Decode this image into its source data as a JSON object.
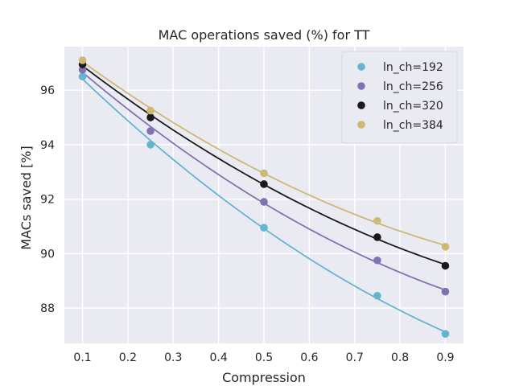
{
  "chart_data": {
    "type": "scatter",
    "title": "MAC operations saved (%) for TT",
    "xlabel": "Compression",
    "ylabel": "MACs saved [%]",
    "xlim": [
      0.06,
      0.94
    ],
    "ylim": [
      86.7,
      97.6
    ],
    "xticks": [
      0.1,
      0.2,
      0.3,
      0.4,
      0.5,
      0.6,
      0.7,
      0.8,
      0.9
    ],
    "yticks": [
      88,
      90,
      92,
      94,
      96
    ],
    "grid": true,
    "legend": "top-right",
    "background": "#eaeaf2",
    "x": [
      0.1,
      0.25,
      0.5,
      0.75,
      0.9
    ],
    "series": [
      {
        "name": "ln_ch=192",
        "color": "#64b5cd",
        "values": [
          96.5,
          94.0,
          90.95,
          88.45,
          87.05
        ]
      },
      {
        "name": "ln_ch=256",
        "color": "#8172b2",
        "values": [
          96.75,
          94.5,
          91.9,
          89.75,
          88.6
        ]
      },
      {
        "name": "ln_ch=320",
        "color": "#1a1a1a",
        "values": [
          96.95,
          95.0,
          92.55,
          90.6,
          89.55
        ]
      },
      {
        "name": "ln_ch=384",
        "color": "#ccb974",
        "values": [
          97.1,
          95.25,
          92.95,
          91.2,
          90.25
        ]
      }
    ]
  }
}
